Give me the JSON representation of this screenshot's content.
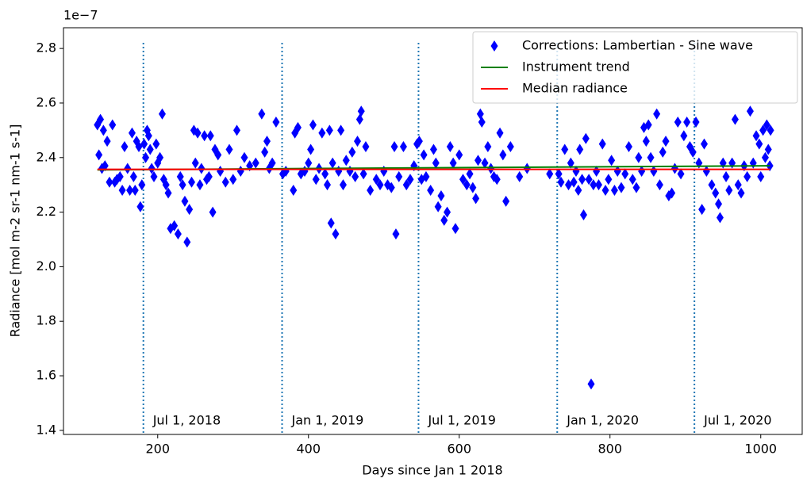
{
  "chart_data": {
    "type": "scatter",
    "xlabel": "Days since Jan 1 2018",
    "ylabel": "Radiance [mol m-2 sr-1 nm-1 s-1]",
    "y_offset_label": "1e−7",
    "xlim": [
      75,
      1055
    ],
    "ylim": [
      1.385,
      2.876
    ],
    "xticks": [
      200,
      400,
      600,
      800,
      1000
    ],
    "yticks": [
      1.4,
      1.6,
      1.8,
      {
        "value": 2,
        "label": "2.0"
      },
      2.2,
      2.4,
      2.6,
      2.8
    ],
    "legend": "upper right",
    "vlines": [
      {
        "x": 181,
        "label": "Jul 1, 2018"
      },
      {
        "x": 365,
        "label": "Jan 1, 2019"
      },
      {
        "x": 546,
        "label": "Jul 1, 2019"
      },
      {
        "x": 730,
        "label": "Jan 1, 2020"
      },
      {
        "x": 912,
        "label": "Jul 1, 2020"
      }
    ],
    "vline_color": "#1f77b4",
    "series": [
      {
        "name": "Corrections: Lambertian - Sine wave",
        "color": "#0000ff",
        "marker": "diamond",
        "x": [
          120,
          122,
          124,
          126,
          128,
          130,
          133,
          136,
          140,
          143,
          146,
          150,
          153,
          156,
          160,
          163,
          166,
          168,
          170,
          172,
          175,
          177,
          179,
          182,
          184,
          186,
          188,
          190,
          192,
          195,
          198,
          200,
          203,
          206,
          208,
          211,
          214,
          217,
          222,
          227,
          230,
          233,
          236,
          239,
          242,
          245,
          248,
          250,
          253,
          256,
          258,
          262,
          265,
          268,
          270,
          273,
          276,
          280,
          283,
          290,
          295,
          300,
          305,
          310,
          315,
          322,
          330,
          338,
          342,
          345,
          348,
          352,
          357,
          366,
          370,
          380,
          382,
          386,
          390,
          395,
          400,
          403,
          406,
          410,
          414,
          418,
          422,
          425,
          428,
          430,
          432,
          436,
          440,
          443,
          446,
          450,
          455,
          458,
          462,
          465,
          468,
          470,
          473,
          476,
          482,
          490,
          495,
          500,
          505,
          510,
          514,
          516,
          520,
          526,
          530,
          535,
          540,
          544,
          547,
          550,
          553,
          556,
          562,
          566,
          569,
          572,
          576,
          580,
          584,
          588,
          592,
          595,
          600,
          605,
          610,
          614,
          618,
          622,
          625,
          628,
          630,
          634,
          638,
          642,
          646,
          650,
          654,
          658,
          662,
          668,
          680,
          690,
          720,
          732,
          735,
          740,
          745,
          748,
          752,
          755,
          758,
          760,
          763,
          765,
          768,
          772,
          775,
          778,
          782,
          785,
          790,
          794,
          798,
          802,
          806,
          810,
          815,
          820,
          825,
          830,
          835,
          838,
          842,
          845,
          848,
          851,
          854,
          858,
          862,
          866,
          870,
          874,
          878,
          882,
          886,
          890,
          894,
          898,
          902,
          906,
          910,
          914,
          918,
          922,
          925,
          928,
          935,
          940,
          944,
          946,
          950,
          954,
          958,
          962,
          966,
          970,
          974,
          978,
          982,
          986,
          990,
          994,
          998,
          1000,
          1003,
          1006,
          1008,
          1010,
          1012,
          1013
        ],
        "values": [
          2.52,
          2.41,
          2.54,
          2.36,
          2.5,
          2.37,
          2.46,
          2.31,
          2.52,
          2.31,
          2.32,
          2.33,
          2.28,
          2.44,
          2.36,
          2.28,
          2.49,
          2.33,
          2.28,
          2.46,
          2.44,
          2.22,
          2.3,
          2.45,
          2.4,
          2.5,
          2.48,
          2.43,
          2.36,
          2.33,
          2.45,
          2.38,
          2.4,
          2.56,
          2.32,
          2.3,
          2.27,
          2.14,
          2.15,
          2.12,
          2.33,
          2.3,
          2.24,
          2.09,
          2.21,
          2.31,
          2.5,
          2.38,
          2.49,
          2.3,
          2.36,
          2.48,
          2.32,
          2.33,
          2.48,
          2.2,
          2.43,
          2.41,
          2.35,
          2.31,
          2.43,
          2.32,
          2.5,
          2.35,
          2.4,
          2.37,
          2.38,
          2.56,
          2.42,
          2.46,
          2.36,
          2.38,
          2.53,
          2.34,
          2.35,
          2.28,
          2.49,
          2.51,
          2.34,
          2.35,
          2.38,
          2.43,
          2.52,
          2.32,
          2.36,
          2.49,
          2.34,
          2.3,
          2.5,
          2.16,
          2.38,
          2.12,
          2.35,
          2.5,
          2.3,
          2.39,
          2.35,
          2.42,
          2.33,
          2.46,
          2.54,
          2.57,
          2.34,
          2.44,
          2.28,
          2.32,
          2.3,
          2.35,
          2.3,
          2.29,
          2.44,
          2.12,
          2.33,
          2.44,
          2.3,
          2.32,
          2.37,
          2.45,
          2.46,
          2.32,
          2.41,
          2.33,
          2.28,
          2.43,
          2.38,
          2.22,
          2.26,
          2.17,
          2.2,
          2.44,
          2.38,
          2.14,
          2.41,
          2.32,
          2.3,
          2.34,
          2.29,
          2.25,
          2.39,
          2.56,
          2.53,
          2.38,
          2.44,
          2.36,
          2.33,
          2.32,
          2.49,
          2.41,
          2.24,
          2.44,
          2.33,
          2.36,
          2.34,
          2.34,
          2.31,
          2.43,
          2.3,
          2.38,
          2.31,
          2.35,
          2.28,
          2.43,
          2.32,
          2.19,
          2.47,
          2.32,
          1.57,
          2.3,
          2.35,
          2.3,
          2.45,
          2.28,
          2.32,
          2.39,
          2.28,
          2.35,
          2.29,
          2.34,
          2.44,
          2.32,
          2.29,
          2.4,
          2.35,
          2.51,
          2.46,
          2.52,
          2.4,
          2.35,
          2.56,
          2.3,
          2.42,
          2.46,
          2.26,
          2.27,
          2.36,
          2.53,
          2.34,
          2.48,
          2.53,
          2.44,
          2.42,
          2.53,
          2.38,
          2.21,
          2.45,
          2.35,
          2.3,
          2.27,
          2.23,
          2.18,
          2.38,
          2.33,
          2.28,
          2.38,
          2.54,
          2.3,
          2.27,
          2.37,
          2.33,
          2.57,
          2.38,
          2.48,
          2.45,
          2.33,
          2.5,
          2.4,
          2.52,
          2.43,
          2.37,
          2.5
        ]
      },
      {
        "name": "Instrument trend",
        "color": "#008000",
        "marker": "line",
        "x": [
          120,
          1012
        ],
        "values": [
          2.355,
          2.37
        ]
      },
      {
        "name": "Median radiance",
        "color": "#ff0000",
        "marker": "line",
        "x": [
          120,
          1012
        ],
        "values": [
          2.357,
          2.357
        ]
      }
    ]
  }
}
